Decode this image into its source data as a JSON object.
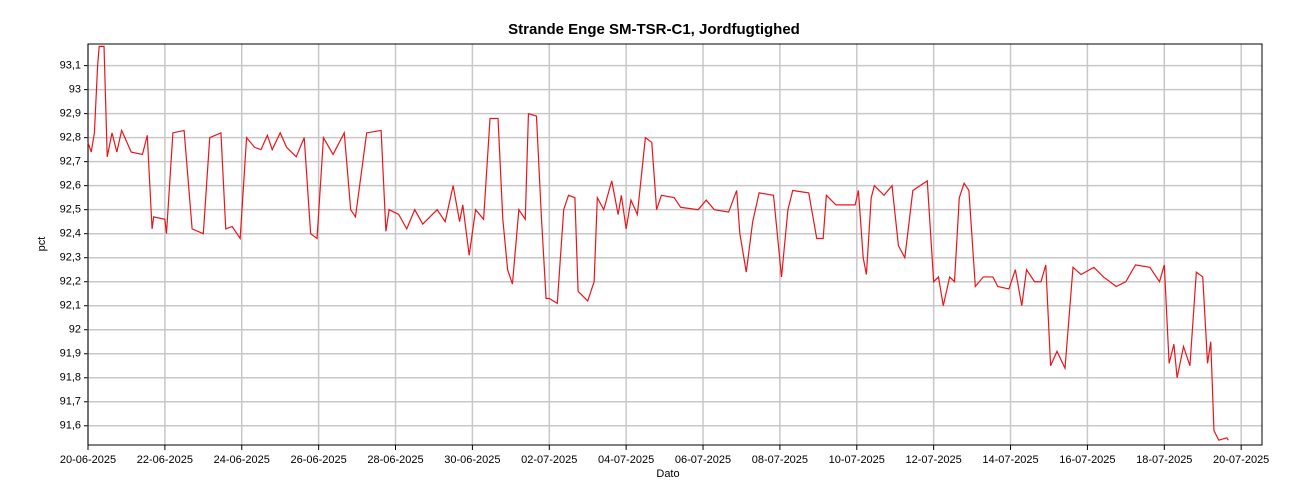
{
  "chart_data": {
    "type": "line",
    "title": "Strande Enge SM-TSR-C1, Jordfugtighed",
    "xlabel": "Dato",
    "ylabel": "pct",
    "grid": true,
    "xlim": [
      "2025-06-20 00:00",
      "2025-07-20 13:00"
    ],
    "ylim": [
      91.52,
      93.19
    ],
    "yticks": [
      {
        "value": 91.6,
        "label": "91,6"
      },
      {
        "value": 91.7,
        "label": "91,7"
      },
      {
        "value": 91.8,
        "label": "91,8"
      },
      {
        "value": 91.9,
        "label": "91,9"
      },
      92,
      {
        "value": 92.1,
        "label": "92,1"
      },
      {
        "value": 92.2,
        "label": "92,2"
      },
      {
        "value": 92.3,
        "label": "92,3"
      },
      {
        "value": 92.4,
        "label": "92,4"
      },
      {
        "value": 92.5,
        "label": "92,5"
      },
      {
        "value": 92.6,
        "label": "92,6"
      },
      {
        "value": 92.7,
        "label": "92,7"
      },
      {
        "value": 92.8,
        "label": "92,8"
      },
      {
        "value": 92.9,
        "label": "92,9"
      },
      93,
      {
        "value": 93.1,
        "label": "93,1"
      }
    ],
    "xticks": [
      {
        "value": "2025-06-20",
        "label": "20-06-2025"
      },
      {
        "value": "2025-06-22",
        "label": "22-06-2025"
      },
      {
        "value": "2025-06-24",
        "label": "24-06-2025"
      },
      {
        "value": "2025-06-26",
        "label": "26-06-2025"
      },
      {
        "value": "2025-06-28",
        "label": "28-06-2025"
      },
      {
        "value": "2025-06-30",
        "label": "30-06-2025"
      },
      {
        "value": "2025-07-02",
        "label": "02-07-2025"
      },
      {
        "value": "2025-07-04",
        "label": "04-07-2025"
      },
      {
        "value": "2025-07-06",
        "label": "06-07-2025"
      },
      {
        "value": "2025-07-08",
        "label": "08-07-2025"
      },
      {
        "value": "2025-07-10",
        "label": "10-07-2025"
      },
      {
        "value": "2025-07-12",
        "label": "12-07-2025"
      },
      {
        "value": "2025-07-14",
        "label": "14-07-2025"
      },
      {
        "value": "2025-07-16",
        "label": "16-07-2025"
      },
      {
        "value": "2025-07-18",
        "label": "18-07-2025"
      },
      {
        "value": "2025-07-20",
        "label": "20-07-2025"
      }
    ],
    "x": [
      "2025-06-20 00:00",
      "2025-06-20 02:00",
      "2025-06-20 04:00",
      "2025-06-20 06:00",
      "2025-06-20 07:00",
      "2025-06-20 10:00",
      "2025-06-20 12:00",
      "2025-06-20 15:00",
      "2025-06-20 18:00",
      "2025-06-20 21:00",
      "2025-06-21 03:00",
      "2025-06-21 10:00",
      "2025-06-21 13:00",
      "2025-06-21 16:00",
      "2025-06-21 17:00",
      "2025-06-22 00:00",
      "2025-06-22 01:00",
      "2025-06-22 05:00",
      "2025-06-22 12:00",
      "2025-06-22 17:00",
      "2025-06-23 00:00",
      "2025-06-23 04:00",
      "2025-06-23 11:00",
      "2025-06-23 14:00",
      "2025-06-23 18:00",
      "2025-06-23 23:00",
      "2025-06-24 03:00",
      "2025-06-24 08:00",
      "2025-06-24 12:00",
      "2025-06-24 16:00",
      "2025-06-24 19:00",
      "2025-06-25 00:00",
      "2025-06-25 04:00",
      "2025-06-25 10:00",
      "2025-06-25 15:00",
      "2025-06-25 19:00",
      "2025-06-25 23:00",
      "2025-06-26 03:00",
      "2025-06-26 09:00",
      "2025-06-26 16:00",
      "2025-06-26 20:00",
      "2025-06-26 23:00",
      "2025-06-27 06:00",
      "2025-06-27 15:00",
      "2025-06-27 18:00",
      "2025-06-27 20:00",
      "2025-06-28 02:00",
      "2025-06-28 07:00",
      "2025-06-28 12:00",
      "2025-06-28 17:00",
      "2025-06-29 02:00",
      "2025-06-29 07:00",
      "2025-06-29 12:00",
      "2025-06-29 16:00",
      "2025-06-29 18:00",
      "2025-06-29 22:00",
      "2025-06-30 02:00",
      "2025-06-30 07:00",
      "2025-06-30 11:00",
      "2025-06-30 16:00",
      "2025-06-30 19:00",
      "2025-06-30 22:00",
      "2025-07-01 01:00",
      "2025-07-01 05:00",
      "2025-07-01 09:00",
      "2025-07-01 11:00",
      "2025-07-01 16:00",
      "2025-07-01 19:00",
      "2025-07-01 22:00",
      "2025-07-02 00:00",
      "2025-07-02 05:00",
      "2025-07-02 09:00",
      "2025-07-02 12:00",
      "2025-07-02 16:00",
      "2025-07-02 18:00",
      "2025-07-03 00:00",
      "2025-07-03 04:00",
      "2025-07-03 06:00",
      "2025-07-03 10:00",
      "2025-07-03 15:00",
      "2025-07-03 19:00",
      "2025-07-03 21:00",
      "2025-07-04 00:00",
      "2025-07-04 03:00",
      "2025-07-04 07:00",
      "2025-07-04 12:00",
      "2025-07-04 16:00",
      "2025-07-04 19:00",
      "2025-07-04 22:00",
      "2025-07-05 06:00",
      "2025-07-05 10:00",
      "2025-07-05 21:00",
      "2025-07-06 02:00",
      "2025-07-06 07:00",
      "2025-07-06 16:00",
      "2025-07-06 21:00",
      "2025-07-06 23:00",
      "2025-07-07 03:00",
      "2025-07-07 07:00",
      "2025-07-07 11:00",
      "2025-07-07 20:00",
      "2025-07-08 01:00",
      "2025-07-08 05:00",
      "2025-07-08 08:00",
      "2025-07-08 18:00",
      "2025-07-08 23:00",
      "2025-07-09 03:00",
      "2025-07-09 05:00",
      "2025-07-09 11:00",
      "2025-07-09 23:00",
      "2025-07-10 01:00",
      "2025-07-10 04:00",
      "2025-07-10 06:00",
      "2025-07-10 09:00",
      "2025-07-10 11:00",
      "2025-07-10 17:00",
      "2025-07-10 22:00",
      "2025-07-11 02:00",
      "2025-07-11 06:00",
      "2025-07-11 11:00",
      "2025-07-11 20:00",
      "2025-07-12 00:00",
      "2025-07-12 03:00",
      "2025-07-12 06:00",
      "2025-07-12 10:00",
      "2025-07-12 13:00",
      "2025-07-12 16:00",
      "2025-07-12 19:00",
      "2025-07-12 22:00",
      "2025-07-13 02:00",
      "2025-07-13 07:00",
      "2025-07-13 13:00",
      "2025-07-13 16:00",
      "2025-07-13 23:00",
      "2025-07-14 03:00",
      "2025-07-14 07:00",
      "2025-07-14 10:00",
      "2025-07-14 15:00",
      "2025-07-14 19:00",
      "2025-07-14 22:00",
      "2025-07-15 01:00",
      "2025-07-15 05:00",
      "2025-07-15 10:00",
      "2025-07-15 15:00",
      "2025-07-15 20:00",
      "2025-07-16 04:00",
      "2025-07-16 10:00",
      "2025-07-16 18:00",
      "2025-07-17 00:00",
      "2025-07-17 06:00",
      "2025-07-17 15:00",
      "2025-07-17 21:00",
      "2025-07-18 00:00",
      "2025-07-18 03:00",
      "2025-07-18 06:00",
      "2025-07-18 08:00",
      "2025-07-18 12:00",
      "2025-07-18 16:00",
      "2025-07-18 20:00",
      "2025-07-19 00:00",
      "2025-07-19 03:00",
      "2025-07-19 05:00",
      "2025-07-19 07:00",
      "2025-07-19 10:00",
      "2025-07-19 15:00",
      "2025-07-19 16:00"
    ],
    "series": [
      {
        "name": "pct",
        "color": "#e8161b",
        "values": [
          92.78,
          92.74,
          92.82,
          93.1,
          93.18,
          93.18,
          92.72,
          92.82,
          92.74,
          92.83,
          92.74,
          92.73,
          92.81,
          92.42,
          92.47,
          92.46,
          92.4,
          92.82,
          92.83,
          92.42,
          92.4,
          92.8,
          92.82,
          92.42,
          92.43,
          92.38,
          92.8,
          92.76,
          92.75,
          92.81,
          92.75,
          92.82,
          92.76,
          92.72,
          92.8,
          92.4,
          92.38,
          92.8,
          92.73,
          92.82,
          92.5,
          92.47,
          92.82,
          92.83,
          92.41,
          92.5,
          92.48,
          92.42,
          92.5,
          92.44,
          92.5,
          92.45,
          92.6,
          92.45,
          92.52,
          92.31,
          92.5,
          92.46,
          92.88,
          92.88,
          92.46,
          92.25,
          92.19,
          92.5,
          92.46,
          92.9,
          92.89,
          92.48,
          92.13,
          92.13,
          92.11,
          92.5,
          92.56,
          92.55,
          92.16,
          92.12,
          92.2,
          92.55,
          92.5,
          92.62,
          92.48,
          92.56,
          92.42,
          92.54,
          92.48,
          92.8,
          92.78,
          92.5,
          92.56,
          92.55,
          92.51,
          92.5,
          92.54,
          92.5,
          92.49,
          92.58,
          92.4,
          92.24,
          92.45,
          92.57,
          92.56,
          92.22,
          92.5,
          92.58,
          92.57,
          92.38,
          92.38,
          92.56,
          92.52,
          92.52,
          92.58,
          92.3,
          92.23,
          92.55,
          92.6,
          92.56,
          92.6,
          92.35,
          92.3,
          92.58,
          92.62,
          92.2,
          92.22,
          92.1,
          92.22,
          92.2,
          92.55,
          92.61,
          92.58,
          92.18,
          92.22,
          92.22,
          92.18,
          92.17,
          92.25,
          92.1,
          92.25,
          92.2,
          92.2,
          92.27,
          91.85,
          91.91,
          91.84,
          92.26,
          92.23,
          92.26,
          92.22,
          92.18,
          92.2,
          92.27,
          92.26,
          92.2,
          92.27,
          91.86,
          91.94,
          91.8,
          91.93,
          91.85,
          92.24,
          92.22,
          91.86,
          91.95,
          91.58,
          91.54,
          91.55,
          91.54
        ]
      }
    ]
  }
}
